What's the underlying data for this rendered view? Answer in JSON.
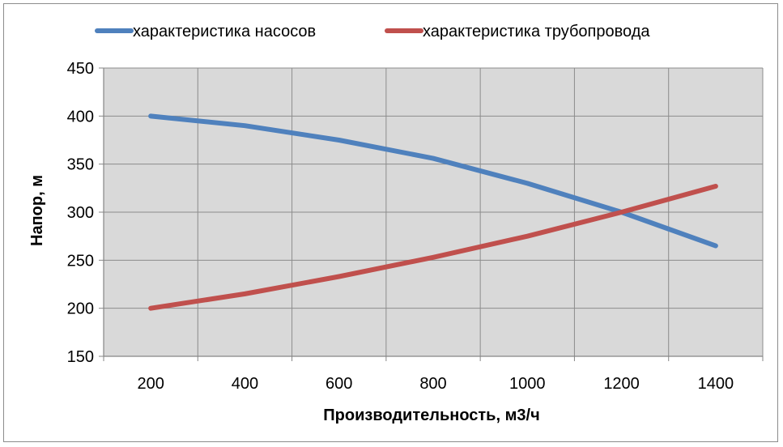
{
  "chart_data": {
    "type": "line",
    "categories": [
      "200",
      "400",
      "600",
      "800",
      "1000",
      "1200",
      "1400"
    ],
    "series": [
      {
        "name": "характеристика насосов",
        "color": "#4f81bd",
        "values": [
          400,
          390,
          375,
          356,
          330,
          300,
          265
        ]
      },
      {
        "name": "характеристика трубопровода",
        "color": "#c0504d",
        "values": [
          200,
          215,
          233,
          253,
          275,
          300,
          327
        ]
      }
    ],
    "xlabel": "Производительность, м3/ч",
    "ylabel": "Напор, м",
    "ylim": [
      150,
      450
    ],
    "yticks": [
      "150",
      "200",
      "250",
      "300",
      "350",
      "400",
      "450"
    ],
    "grid": true,
    "legend": "top",
    "plot_background": "#d9d9d9"
  }
}
